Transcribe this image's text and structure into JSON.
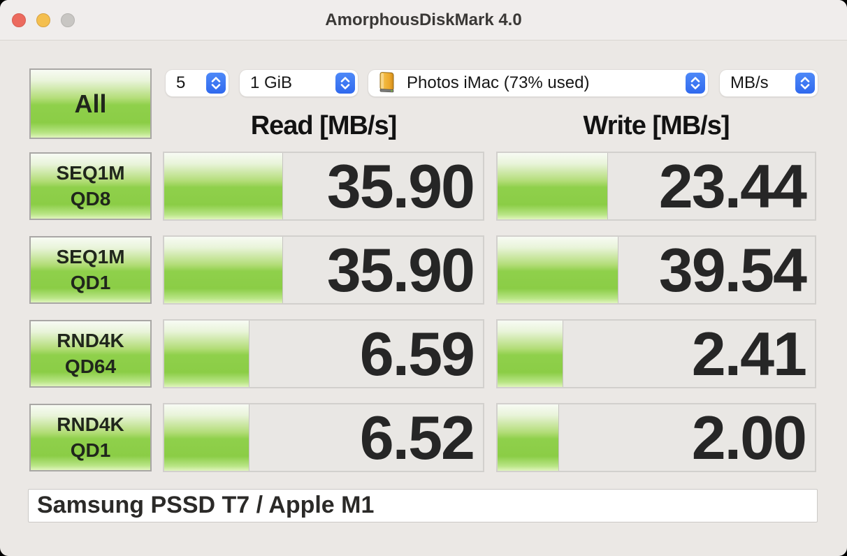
{
  "window": {
    "title": "AmorphousDiskMark 4.0"
  },
  "controls": {
    "all_button": "All",
    "runs": {
      "value": "5"
    },
    "test_size": {
      "value": "1 GiB"
    },
    "target_volume": {
      "value": "Photos iMac (73% used)",
      "icon": "orange-external-drive"
    },
    "unit": {
      "value": "MB/s"
    }
  },
  "columns": {
    "read": "Read [MB/s]",
    "write": "Write [MB/s]"
  },
  "rows": [
    {
      "label1": "SEQ1M",
      "label2": "QD8",
      "read": "35.90",
      "write": "23.44"
    },
    {
      "label1": "SEQ1M",
      "label2": "QD1",
      "read": "35.90",
      "write": "39.54"
    },
    {
      "label1": "RND4K",
      "label2": "QD64",
      "read": "6.59",
      "write": "2.41"
    },
    {
      "label1": "RND4K",
      "label2": "QD1",
      "read": "6.52",
      "write": "2.00"
    }
  ],
  "comment": "Samsung PSSD T7 / Apple M1",
  "chart_data": {
    "type": "bar",
    "title": "AmorphousDiskMark 4.0 results",
    "unit": "MB/s",
    "categories": [
      "SEQ1M QD8",
      "SEQ1M QD1",
      "RND4K QD64",
      "RND4K QD1"
    ],
    "series": [
      {
        "name": "Read",
        "values": [
          35.9,
          35.9,
          6.59,
          6.52
        ]
      },
      {
        "name": "Write",
        "values": [
          23.44,
          39.54,
          2.41,
          2.0
        ]
      }
    ],
    "scale": "log",
    "bar_gradient": [
      "#f8fbf4",
      "#8fd04b",
      "#e0f5bd"
    ]
  },
  "colors": {
    "window_bg": "#ebe8e5",
    "titlebar_bg": "#f0edec",
    "cell_bg": "#e9e7e4",
    "accent_green": "#8fd04b",
    "stepper_blue": "#3b79f2",
    "traffic_red": "#ec6a5e",
    "traffic_yellow": "#f4bf4f",
    "traffic_gray": "#c8c6c3"
  }
}
